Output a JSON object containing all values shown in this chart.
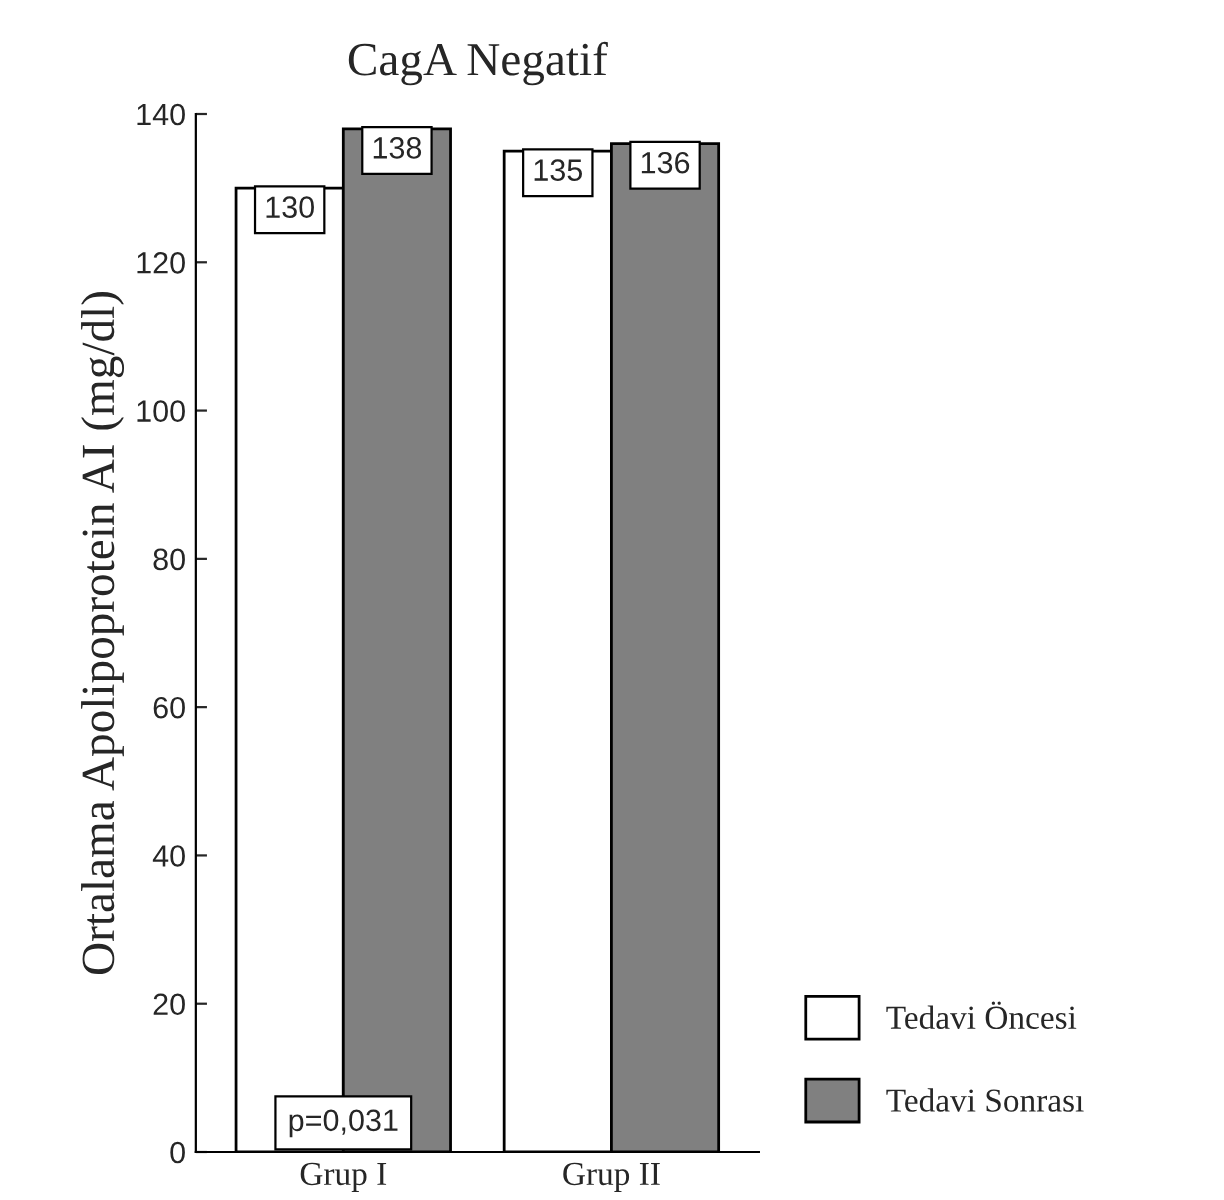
{
  "chart_data": {
    "type": "bar",
    "title": "CagA Negatif",
    "ylabel": "Ortalama Apolipoprotein AI (mg/dl)",
    "categories": [
      "Grup I",
      "Grup II"
    ],
    "series": [
      {
        "name": "Tedavi Öncesi",
        "color": "#ffffff",
        "values": [
          130,
          135
        ]
      },
      {
        "name": "Tedavi Sonrası",
        "color": "#808080",
        "values": [
          138,
          136
        ]
      }
    ],
    "ylim": [
      0,
      140
    ],
    "yticks": [
      0,
      20,
      40,
      60,
      80,
      100,
      120,
      140
    ],
    "data_labels": true,
    "grid": false,
    "legend": "bottom right",
    "annotations": [
      "p=0,031"
    ]
  }
}
